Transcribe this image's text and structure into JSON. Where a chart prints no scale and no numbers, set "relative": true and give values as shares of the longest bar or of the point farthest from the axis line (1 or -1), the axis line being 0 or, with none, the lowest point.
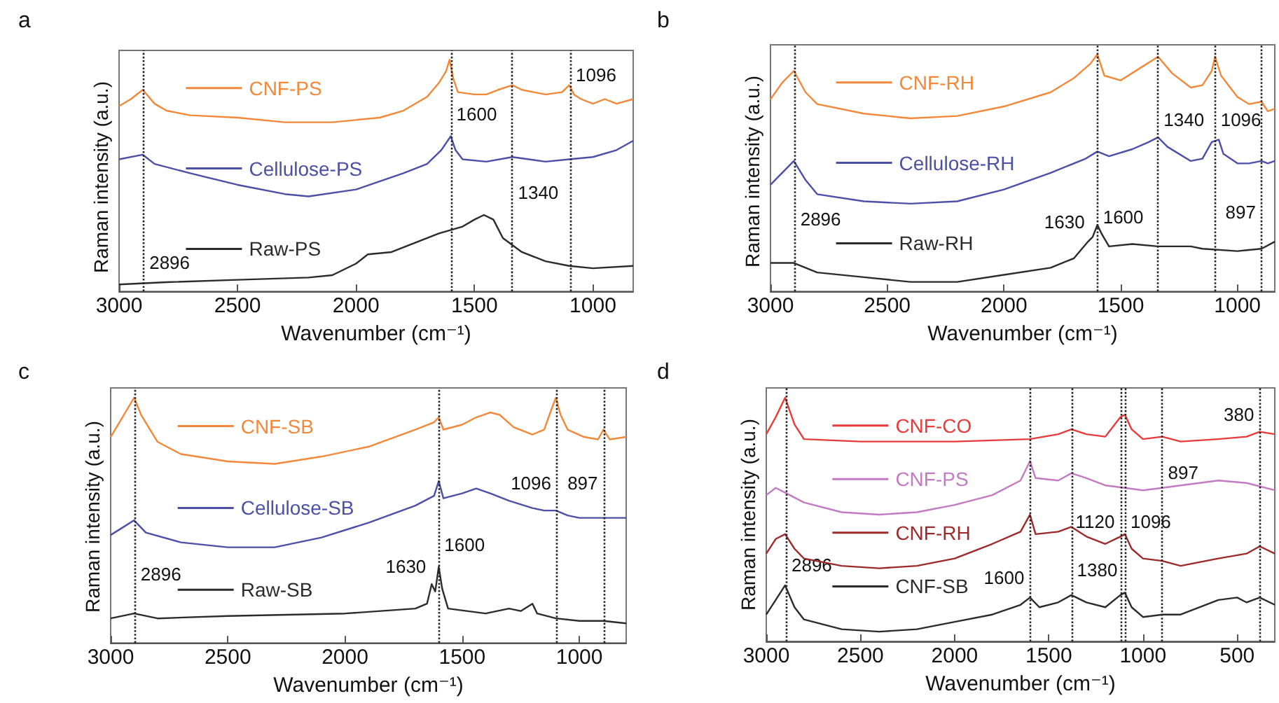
{
  "chart_data": [
    {
      "type": "line",
      "title": "a",
      "xlabel": "Wavenumber (cm⁻¹)",
      "ylabel": "Raman intensity (a.u.)",
      "relative": true,
      "tick_labels": "x",
      "legend": "top left",
      "xlim": [
        3000,
        830
      ],
      "xticks": [
        3000,
        2500,
        2000,
        1500,
        1000
      ],
      "ref_lines": [
        {
          "axis": "x",
          "value": 2896,
          "color": "#222222",
          "line_style": "dotted"
        },
        {
          "axis": "x",
          "value": 1600,
          "color": "#222222",
          "line_style": "dotted"
        },
        {
          "axis": "x",
          "value": 1340,
          "color": "#222222",
          "line_style": "dotted"
        },
        {
          "axis": "x",
          "value": 1096,
          "color": "#222222",
          "line_style": "dotted"
        }
      ],
      "annotations": [
        {
          "text": "2896",
          "x": 2896,
          "y": 0.05
        },
        {
          "text": "1600",
          "x": 1600,
          "y": 0.69
        },
        {
          "text": "1340",
          "x": 1340,
          "y": 0.35
        },
        {
          "text": "1096",
          "x": 1096,
          "y": 0.86
        }
      ],
      "series": [
        {
          "name": "CNF-PS",
          "color": "#f2883a",
          "x": [
            3000,
            2950,
            2900,
            2850,
            2800,
            2700,
            2500,
            2300,
            2100,
            1900,
            1800,
            1700,
            1650,
            1620,
            1605,
            1590,
            1570,
            1500,
            1450,
            1400,
            1340,
            1300,
            1250,
            1200,
            1130,
            1100,
            1080,
            1050,
            1000,
            950,
            900,
            830
          ],
          "values": [
            0.8,
            0.83,
            0.87,
            0.81,
            0.78,
            0.76,
            0.75,
            0.73,
            0.73,
            0.75,
            0.78,
            0.84,
            0.9,
            0.95,
            1.0,
            0.92,
            0.86,
            0.85,
            0.85,
            0.87,
            0.89,
            0.87,
            0.86,
            0.85,
            0.86,
            0.89,
            0.85,
            0.83,
            0.81,
            0.83,
            0.81,
            0.83
          ]
        },
        {
          "name": "Cellulose-PS",
          "color": "#4b4fa6",
          "x": [
            3000,
            2900,
            2850,
            2700,
            2500,
            2300,
            2200,
            2000,
            1800,
            1700,
            1640,
            1600,
            1580,
            1550,
            1450,
            1340,
            1200,
            1100,
            1000,
            900,
            830
          ],
          "values": [
            0.57,
            0.59,
            0.55,
            0.51,
            0.46,
            0.42,
            0.41,
            0.44,
            0.51,
            0.55,
            0.61,
            0.67,
            0.61,
            0.57,
            0.56,
            0.58,
            0.56,
            0.57,
            0.58,
            0.61,
            0.65
          ]
        },
        {
          "name": "Raw-PS",
          "color": "#2b2b2b",
          "x": [
            3000,
            2800,
            2500,
            2200,
            2100,
            2000,
            1950,
            1850,
            1750,
            1650,
            1550,
            1500,
            1460,
            1420,
            1380,
            1300,
            1200,
            1100,
            1000,
            830
          ],
          "values": [
            0.03,
            0.04,
            0.05,
            0.06,
            0.07,
            0.12,
            0.16,
            0.17,
            0.21,
            0.25,
            0.28,
            0.31,
            0.33,
            0.31,
            0.23,
            0.17,
            0.13,
            0.11,
            0.1,
            0.11
          ]
        }
      ]
    },
    {
      "type": "line",
      "title": "b",
      "xlabel": "Wavenumber (cm⁻¹)",
      "ylabel": "Raman intensity (a.u.)",
      "relative": true,
      "tick_labels": "x",
      "legend": "top left",
      "xlim": [
        3000,
        840
      ],
      "xticks": [
        3000,
        2500,
        2000,
        1500,
        1000
      ],
      "ref_lines": [
        {
          "axis": "x",
          "value": 2896,
          "color": "#222222",
          "line_style": "dotted"
        },
        {
          "axis": "x",
          "value": 1600,
          "color": "#222222",
          "line_style": "dotted"
        },
        {
          "axis": "x",
          "value": 1340,
          "color": "#222222",
          "line_style": "dotted"
        },
        {
          "axis": "x",
          "value": 1096,
          "color": "#222222",
          "line_style": "dotted"
        },
        {
          "axis": "x",
          "value": 897,
          "color": "#222222",
          "line_style": "dotted"
        }
      ],
      "annotations": [
        {
          "text": "2896",
          "x": 2896,
          "y": 0.23
        },
        {
          "text": "1630",
          "x": 1630,
          "y": 0.22
        },
        {
          "text": "1600",
          "x": 1600,
          "y": 0.24
        },
        {
          "text": "1340",
          "x": 1340,
          "y": 0.65
        },
        {
          "text": "1096",
          "x": 1096,
          "y": 0.65
        },
        {
          "text": "897",
          "x": 897,
          "y": 0.26
        }
      ],
      "series": [
        {
          "name": "CNF-RH",
          "color": "#f2883a",
          "x": [
            3000,
            2950,
            2900,
            2850,
            2800,
            2600,
            2400,
            2200,
            2000,
            1800,
            1700,
            1630,
            1600,
            1570,
            1500,
            1420,
            1340,
            1280,
            1200,
            1150,
            1110,
            1096,
            1070,
            1000,
            950,
            897,
            870,
            840
          ],
          "values": [
            0.81,
            0.88,
            0.93,
            0.84,
            0.79,
            0.75,
            0.73,
            0.74,
            0.78,
            0.84,
            0.9,
            0.96,
            1.0,
            0.91,
            0.89,
            0.94,
            0.99,
            0.92,
            0.86,
            0.87,
            0.93,
            0.99,
            0.91,
            0.82,
            0.79,
            0.8,
            0.76,
            0.77
          ]
        },
        {
          "name": "Cellulose-RH",
          "color": "#4b4fa6",
          "x": [
            3000,
            2950,
            2900,
            2850,
            2800,
            2600,
            2400,
            2200,
            2000,
            1800,
            1650,
            1600,
            1550,
            1450,
            1380,
            1340,
            1300,
            1200,
            1150,
            1110,
            1080,
            1060,
            1000,
            950,
            897,
            870,
            840
          ],
          "values": [
            0.45,
            0.5,
            0.55,
            0.47,
            0.41,
            0.38,
            0.37,
            0.38,
            0.43,
            0.5,
            0.56,
            0.59,
            0.57,
            0.6,
            0.63,
            0.65,
            0.61,
            0.55,
            0.56,
            0.63,
            0.64,
            0.58,
            0.54,
            0.54,
            0.55,
            0.54,
            0.55
          ]
        },
        {
          "name": "Raw-RH",
          "color": "#2b2b2b",
          "x": [
            3000,
            2900,
            2800,
            2600,
            2400,
            2200,
            2000,
            1800,
            1700,
            1640,
            1620,
            1600,
            1580,
            1550,
            1450,
            1340,
            1200,
            1150,
            1000,
            897,
            840
          ],
          "values": [
            0.12,
            0.12,
            0.08,
            0.06,
            0.04,
            0.04,
            0.07,
            0.1,
            0.14,
            0.21,
            0.23,
            0.28,
            0.24,
            0.19,
            0.2,
            0.19,
            0.19,
            0.18,
            0.17,
            0.18,
            0.21
          ]
        }
      ]
    },
    {
      "type": "line",
      "title": "c",
      "xlabel": "Wavenumber (cm⁻¹)",
      "ylabel": "Raman intensity (a.u.)",
      "relative": true,
      "tick_labels": "x",
      "legend": "top left",
      "xlim": [
        3000,
        800
      ],
      "xticks": [
        3000,
        2500,
        2000,
        1500,
        1000
      ],
      "ref_lines": [
        {
          "axis": "x",
          "value": 2896,
          "color": "#222222",
          "line_style": "dotted"
        },
        {
          "axis": "x",
          "value": 1600,
          "color": "#222222",
          "line_style": "dotted"
        },
        {
          "axis": "x",
          "value": 1096,
          "color": "#222222",
          "line_style": "dotted"
        },
        {
          "axis": "x",
          "value": 897,
          "color": "#222222",
          "line_style": "dotted"
        }
      ],
      "annotations": [
        {
          "text": "2896",
          "x": 2896,
          "y": 0.21
        },
        {
          "text": "1630",
          "x": 1630,
          "y": 0.24
        },
        {
          "text": "1600",
          "x": 1600,
          "y": 0.33
        },
        {
          "text": "1096",
          "x": 1096,
          "y": 0.58
        },
        {
          "text": "897",
          "x": 897,
          "y": 0.58
        }
      ],
      "series": [
        {
          "name": "CNF-SB",
          "color": "#f2883a",
          "x": [
            3000,
            2950,
            2900,
            2870,
            2800,
            2700,
            2500,
            2300,
            2100,
            1900,
            1700,
            1620,
            1600,
            1580,
            1500,
            1440,
            1380,
            1340,
            1280,
            1200,
            1150,
            1120,
            1100,
            1080,
            1050,
            980,
            920,
            897,
            870,
            800
          ],
          "values": [
            0.84,
            0.92,
            1.0,
            0.93,
            0.82,
            0.77,
            0.74,
            0.73,
            0.76,
            0.8,
            0.87,
            0.9,
            0.92,
            0.87,
            0.89,
            0.92,
            0.94,
            0.93,
            0.88,
            0.85,
            0.87,
            0.95,
            1.0,
            0.93,
            0.87,
            0.84,
            0.83,
            0.87,
            0.83,
            0.84
          ]
        },
        {
          "name": "Cellulose-SB",
          "color": "#4b4fa6",
          "x": [
            3000,
            2950,
            2900,
            2850,
            2700,
            2500,
            2300,
            2100,
            1900,
            1700,
            1620,
            1600,
            1580,
            1500,
            1440,
            1380,
            1300,
            1200,
            1150,
            1100,
            1050,
            1000,
            897,
            800
          ],
          "values": [
            0.44,
            0.47,
            0.5,
            0.45,
            0.41,
            0.39,
            0.39,
            0.43,
            0.49,
            0.56,
            0.6,
            0.66,
            0.59,
            0.61,
            0.63,
            0.61,
            0.58,
            0.55,
            0.54,
            0.54,
            0.52,
            0.51,
            0.51,
            0.51
          ]
        },
        {
          "name": "Raw-SB",
          "color": "#2b2b2b",
          "x": [
            3000,
            2900,
            2800,
            2500,
            2000,
            1700,
            1650,
            1630,
            1615,
            1600,
            1585,
            1560,
            1400,
            1300,
            1250,
            1200,
            1180,
            1100,
            1000,
            897,
            800
          ],
          "values": [
            0.1,
            0.12,
            0.1,
            0.11,
            0.12,
            0.14,
            0.16,
            0.24,
            0.21,
            0.31,
            0.22,
            0.14,
            0.12,
            0.14,
            0.13,
            0.16,
            0.12,
            0.1,
            0.09,
            0.09,
            0.08
          ]
        }
      ]
    },
    {
      "type": "line",
      "title": "d",
      "xlabel": "Wavenumber (cm⁻¹)",
      "ylabel": "Raman intensity (a.u.)",
      "relative": true,
      "tick_labels": "x",
      "legend": "top left",
      "xlim": [
        3000,
        300
      ],
      "xticks": [
        3000,
        2500,
        2000,
        1500,
        1000,
        500
      ],
      "ref_lines": [
        {
          "axis": "x",
          "value": 2896,
          "color": "#222222",
          "line_style": "dotted"
        },
        {
          "axis": "x",
          "value": 1600,
          "color": "#222222",
          "line_style": "dotted"
        },
        {
          "axis": "x",
          "value": 1380,
          "color": "#222222",
          "line_style": "dotted"
        },
        {
          "axis": "x",
          "value": 1120,
          "color": "#222222",
          "line_style": "dotted"
        },
        {
          "axis": "x",
          "value": 1096,
          "color": "#222222",
          "line_style": "dotted"
        },
        {
          "axis": "x",
          "value": 897,
          "color": "#222222",
          "line_style": "dotted"
        },
        {
          "axis": "x",
          "value": 380,
          "color": "#222222",
          "line_style": "dotted"
        }
      ],
      "annotations": [
        {
          "text": "2896",
          "x": 2896,
          "y": 0.24
        },
        {
          "text": "1600",
          "x": 1600,
          "y": 0.19
        },
        {
          "text": "1380",
          "x": 1380,
          "y": 0.22
        },
        {
          "text": "1120",
          "x": 1120,
          "y": 0.42
        },
        {
          "text": "1096",
          "x": 1096,
          "y": 0.42
        },
        {
          "text": "897",
          "x": 897,
          "y": 0.62
        },
        {
          "text": "380",
          "x": 380,
          "y": 0.86
        }
      ],
      "series": [
        {
          "name": "CNF-CO",
          "color": "#e83a3a",
          "x": [
            3000,
            2950,
            2900,
            2850,
            2800,
            2500,
            2000,
            1600,
            1450,
            1380,
            1300,
            1200,
            1150,
            1120,
            1096,
            1060,
            1000,
            897,
            800,
            600,
            450,
            380,
            300
          ],
          "values": [
            0.85,
            0.92,
            1.0,
            0.89,
            0.83,
            0.82,
            0.82,
            0.83,
            0.85,
            0.87,
            0.85,
            0.84,
            0.89,
            0.92,
            0.93,
            0.87,
            0.83,
            0.84,
            0.82,
            0.83,
            0.84,
            0.86,
            0.85
          ]
        },
        {
          "name": "CNF-PS",
          "color": "#c27bc2",
          "x": [
            3000,
            2950,
            2900,
            2800,
            2600,
            2400,
            2200,
            2000,
            1800,
            1650,
            1600,
            1570,
            1450,
            1380,
            1300,
            1200,
            1096,
            1000,
            897,
            800,
            600,
            450,
            300
          ],
          "values": [
            0.6,
            0.63,
            0.61,
            0.57,
            0.53,
            0.52,
            0.53,
            0.56,
            0.6,
            0.66,
            0.74,
            0.67,
            0.66,
            0.69,
            0.67,
            0.64,
            0.63,
            0.62,
            0.63,
            0.64,
            0.66,
            0.65,
            0.62
          ]
        },
        {
          "name": "CNF-RH",
          "color": "#9c2a2a",
          "x": [
            3000,
            2950,
            2900,
            2850,
            2800,
            2600,
            2400,
            2200,
            2000,
            1800,
            1650,
            1600,
            1570,
            1450,
            1380,
            1300,
            1200,
            1120,
            1096,
            1060,
            1000,
            897,
            800,
            600,
            450,
            380,
            300
          ],
          "values": [
            0.36,
            0.42,
            0.44,
            0.38,
            0.34,
            0.31,
            0.3,
            0.31,
            0.34,
            0.4,
            0.45,
            0.52,
            0.44,
            0.45,
            0.47,
            0.43,
            0.4,
            0.43,
            0.44,
            0.38,
            0.34,
            0.33,
            0.31,
            0.34,
            0.36,
            0.39,
            0.36
          ]
        },
        {
          "name": "CNF-SB",
          "color": "#2b2b2b",
          "x": [
            3000,
            2950,
            2900,
            2850,
            2800,
            2600,
            2400,
            2200,
            2000,
            1800,
            1650,
            1600,
            1550,
            1450,
            1380,
            1300,
            1200,
            1120,
            1096,
            1060,
            1000,
            897,
            800,
            600,
            500,
            450,
            380,
            300
          ],
          "values": [
            0.11,
            0.17,
            0.23,
            0.14,
            0.09,
            0.05,
            0.04,
            0.05,
            0.08,
            0.11,
            0.15,
            0.18,
            0.14,
            0.16,
            0.19,
            0.16,
            0.14,
            0.19,
            0.2,
            0.14,
            0.1,
            0.11,
            0.11,
            0.17,
            0.18,
            0.16,
            0.18,
            0.15
          ]
        }
      ]
    }
  ]
}
